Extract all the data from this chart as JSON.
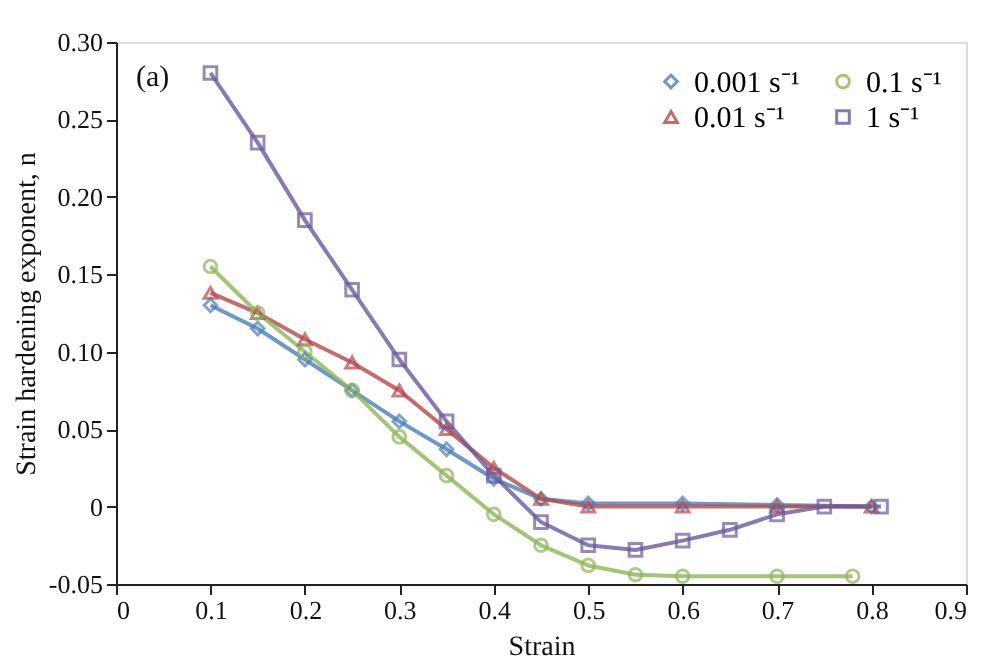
{
  "chart_data": {
    "type": "line",
    "xlabel": "Strain",
    "ylabel": "Strain hardening exponent, n",
    "annotations": [
      "(a)"
    ],
    "xlim": [
      0,
      0.9
    ],
    "xticks": [
      0,
      0.1,
      0.2,
      0.3,
      0.4,
      0.5,
      0.6,
      0.7,
      0.8,
      0.9
    ],
    "ylim": [
      -0.05,
      0.3
    ],
    "yticks": [
      {
        "value": -0.05,
        "label": "-0.05"
      },
      0,
      {
        "value": 0.05,
        "label": "0.05"
      },
      {
        "value": 0.1,
        "label": "0.10"
      },
      {
        "value": 0.15,
        "label": "0.15"
      },
      {
        "value": 0.2,
        "label": "0.20"
      },
      {
        "value": 0.25,
        "label": "0.25"
      },
      {
        "value": 0.3,
        "label": "0.30"
      }
    ],
    "grid": false,
    "legend": "top right",
    "line_style": "solid",
    "series": [
      {
        "name": "0.001 s⁻¹",
        "color": "#4a7fb5",
        "marker": "diamond",
        "x": [
          0.1,
          0.15,
          0.2,
          0.25,
          0.3,
          0.35,
          0.4,
          0.45,
          0.5,
          0.6,
          0.7,
          0.8
        ],
        "values": [
          0.13,
          0.115,
          0.095,
          0.075,
          0.055,
          0.037,
          0.018,
          0.005,
          0.002,
          0.002,
          0.001,
          0.0
        ]
      },
      {
        "name": "0.01 s⁻¹",
        "color": "#b5474b",
        "marker": "triangle",
        "x": [
          0.1,
          0.15,
          0.2,
          0.25,
          0.3,
          0.35,
          0.4,
          0.45,
          0.5,
          0.6,
          0.7,
          0.8
        ],
        "values": [
          0.138,
          0.125,
          0.108,
          0.093,
          0.075,
          0.05,
          0.025,
          0.005,
          0.0,
          0.0,
          0.0,
          0.0
        ]
      },
      {
        "name": "0.1 s⁻¹",
        "color": "#8fb55a",
        "marker": "circle",
        "x": [
          0.1,
          0.15,
          0.2,
          0.25,
          0.3,
          0.35,
          0.4,
          0.45,
          0.5,
          0.55,
          0.6,
          0.7,
          0.78
        ],
        "values": [
          0.155,
          0.125,
          0.1,
          0.075,
          0.045,
          0.02,
          -0.005,
          -0.025,
          -0.038,
          -0.044,
          -0.045,
          -0.045,
          -0.045
        ]
      },
      {
        "name": "1 s⁻¹",
        "color": "#6b5a9e",
        "marker": "square",
        "x": [
          0.1,
          0.15,
          0.2,
          0.25,
          0.3,
          0.35,
          0.4,
          0.45,
          0.5,
          0.55,
          0.6,
          0.65,
          0.7,
          0.75,
          0.81
        ],
        "values": [
          0.28,
          0.235,
          0.185,
          0.14,
          0.095,
          0.055,
          0.02,
          -0.01,
          -0.025,
          -0.028,
          -0.022,
          -0.015,
          -0.005,
          0.0,
          0.0
        ]
      }
    ]
  }
}
